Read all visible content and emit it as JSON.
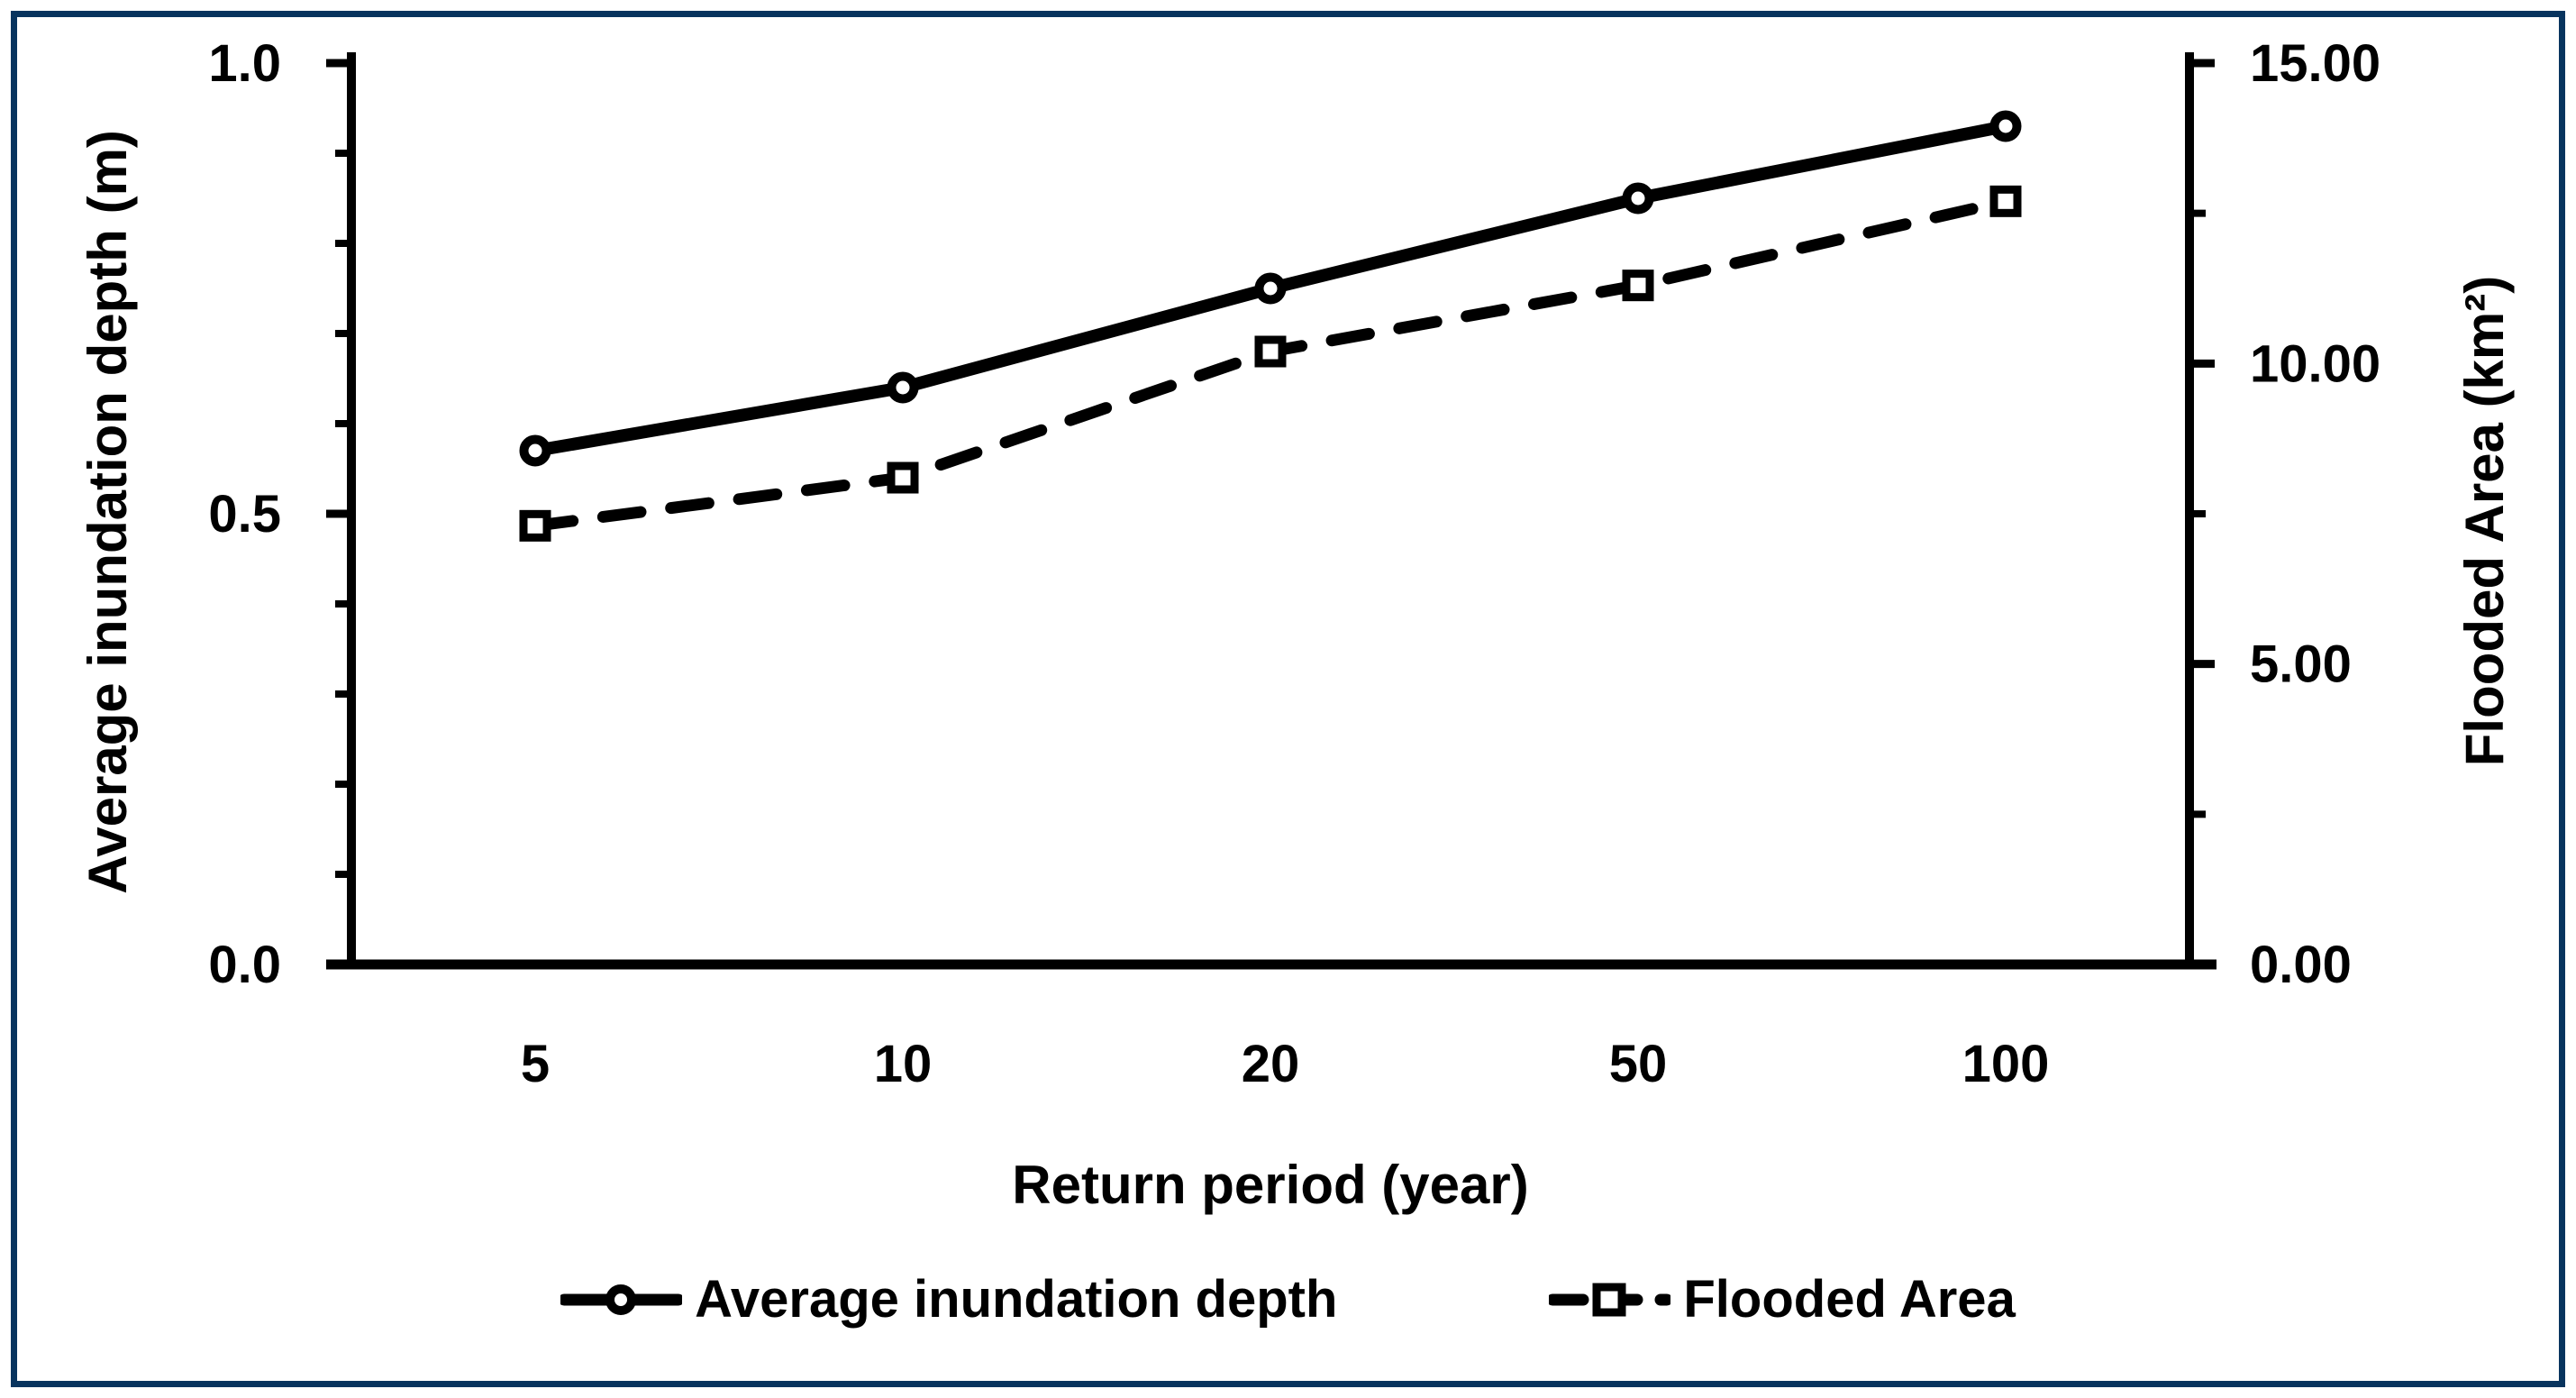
{
  "figure": {
    "border_color": "#08345e",
    "background_color": "#ffffff",
    "line_color": "#000000"
  },
  "chart_data": {
    "type": "line",
    "x_categories": [
      "5",
      "10",
      "20",
      "50",
      "100"
    ],
    "xlabel": "Return period (year)",
    "series": [
      {
        "name": "Average inundation depth",
        "axis": "left",
        "style": "solid",
        "marker": "circle",
        "values": [
          0.57,
          0.64,
          0.75,
          0.85,
          0.93
        ]
      },
      {
        "name": "Flooded Area",
        "axis": "right",
        "style": "dashed",
        "marker": "square",
        "values": [
          7.3,
          8.1,
          10.2,
          11.3,
          12.7
        ]
      }
    ],
    "left_axis": {
      "label": "Average inundation depth (m)",
      "range": [
        0,
        1
      ],
      "major_ticks": [
        {
          "v": 0.0,
          "label": "0.0"
        },
        {
          "v": 0.5,
          "label": "0.5"
        },
        {
          "v": 1.0,
          "label": "1.0"
        }
      ],
      "minor_step": 0.1
    },
    "right_axis": {
      "label": "Flooded Area (km²)",
      "range": [
        0,
        15
      ],
      "major_ticks": [
        {
          "v": 0,
          "label": "0.00"
        },
        {
          "v": 5,
          "label": "5.00"
        },
        {
          "v": 10,
          "label": "10.00"
        },
        {
          "v": 15,
          "label": "15.00"
        }
      ],
      "minor_step": 2.5
    },
    "legend": {
      "position": "bottom",
      "entries": [
        "Average inundation depth",
        "Flooded Area"
      ]
    },
    "grid": false
  }
}
